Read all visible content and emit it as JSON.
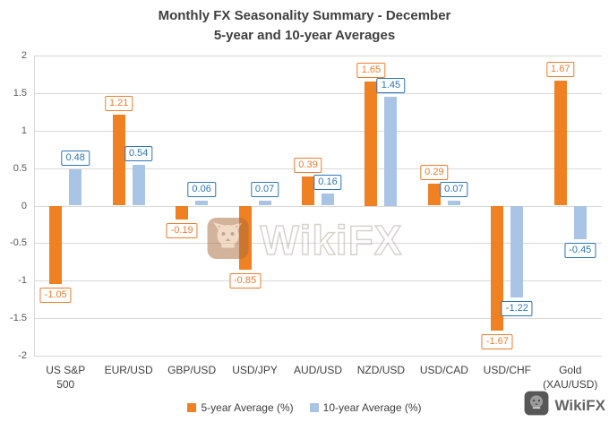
{
  "watermark": {
    "text": "WikiFX",
    "corner_text": "WikiFX"
  },
  "chart_data": {
    "type": "bar",
    "title": "Monthly FX Seasonality Summary - December",
    "subtitle": "5-year and 10-year Averages",
    "categories": [
      "US S&P 500",
      "EUR/USD",
      "GBP/USD",
      "USD/JPY",
      "AUD/USD",
      "NZD/USD",
      "USD/CAD",
      "USD/CHF",
      "Gold (XAU/USD)"
    ],
    "series": [
      {
        "name": "5-year Average (%)",
        "color": "#EF8122",
        "label_color": "#ED7D31",
        "values": [
          -1.05,
          1.21,
          -0.19,
          -0.85,
          0.39,
          1.65,
          0.29,
          -1.67,
          1.67
        ]
      },
      {
        "name": "10-year Average (%)",
        "color": "#A9C4E4",
        "label_color": "#2E75B6",
        "values": [
          0.48,
          0.54,
          0.06,
          0.07,
          0.16,
          1.45,
          0.07,
          -1.22,
          -0.45
        ]
      }
    ],
    "ylim": [
      -2,
      2
    ],
    "ytick_step": 0.5,
    "yticks": [
      "2",
      "1.5",
      "1",
      "0.5",
      "0",
      "-0.5",
      "-1",
      "-1.5",
      "-2"
    ],
    "grid": true,
    "legend_position": "bottom",
    "gridline_color": "#d9d9d9",
    "axis_text_color": "#595959"
  }
}
